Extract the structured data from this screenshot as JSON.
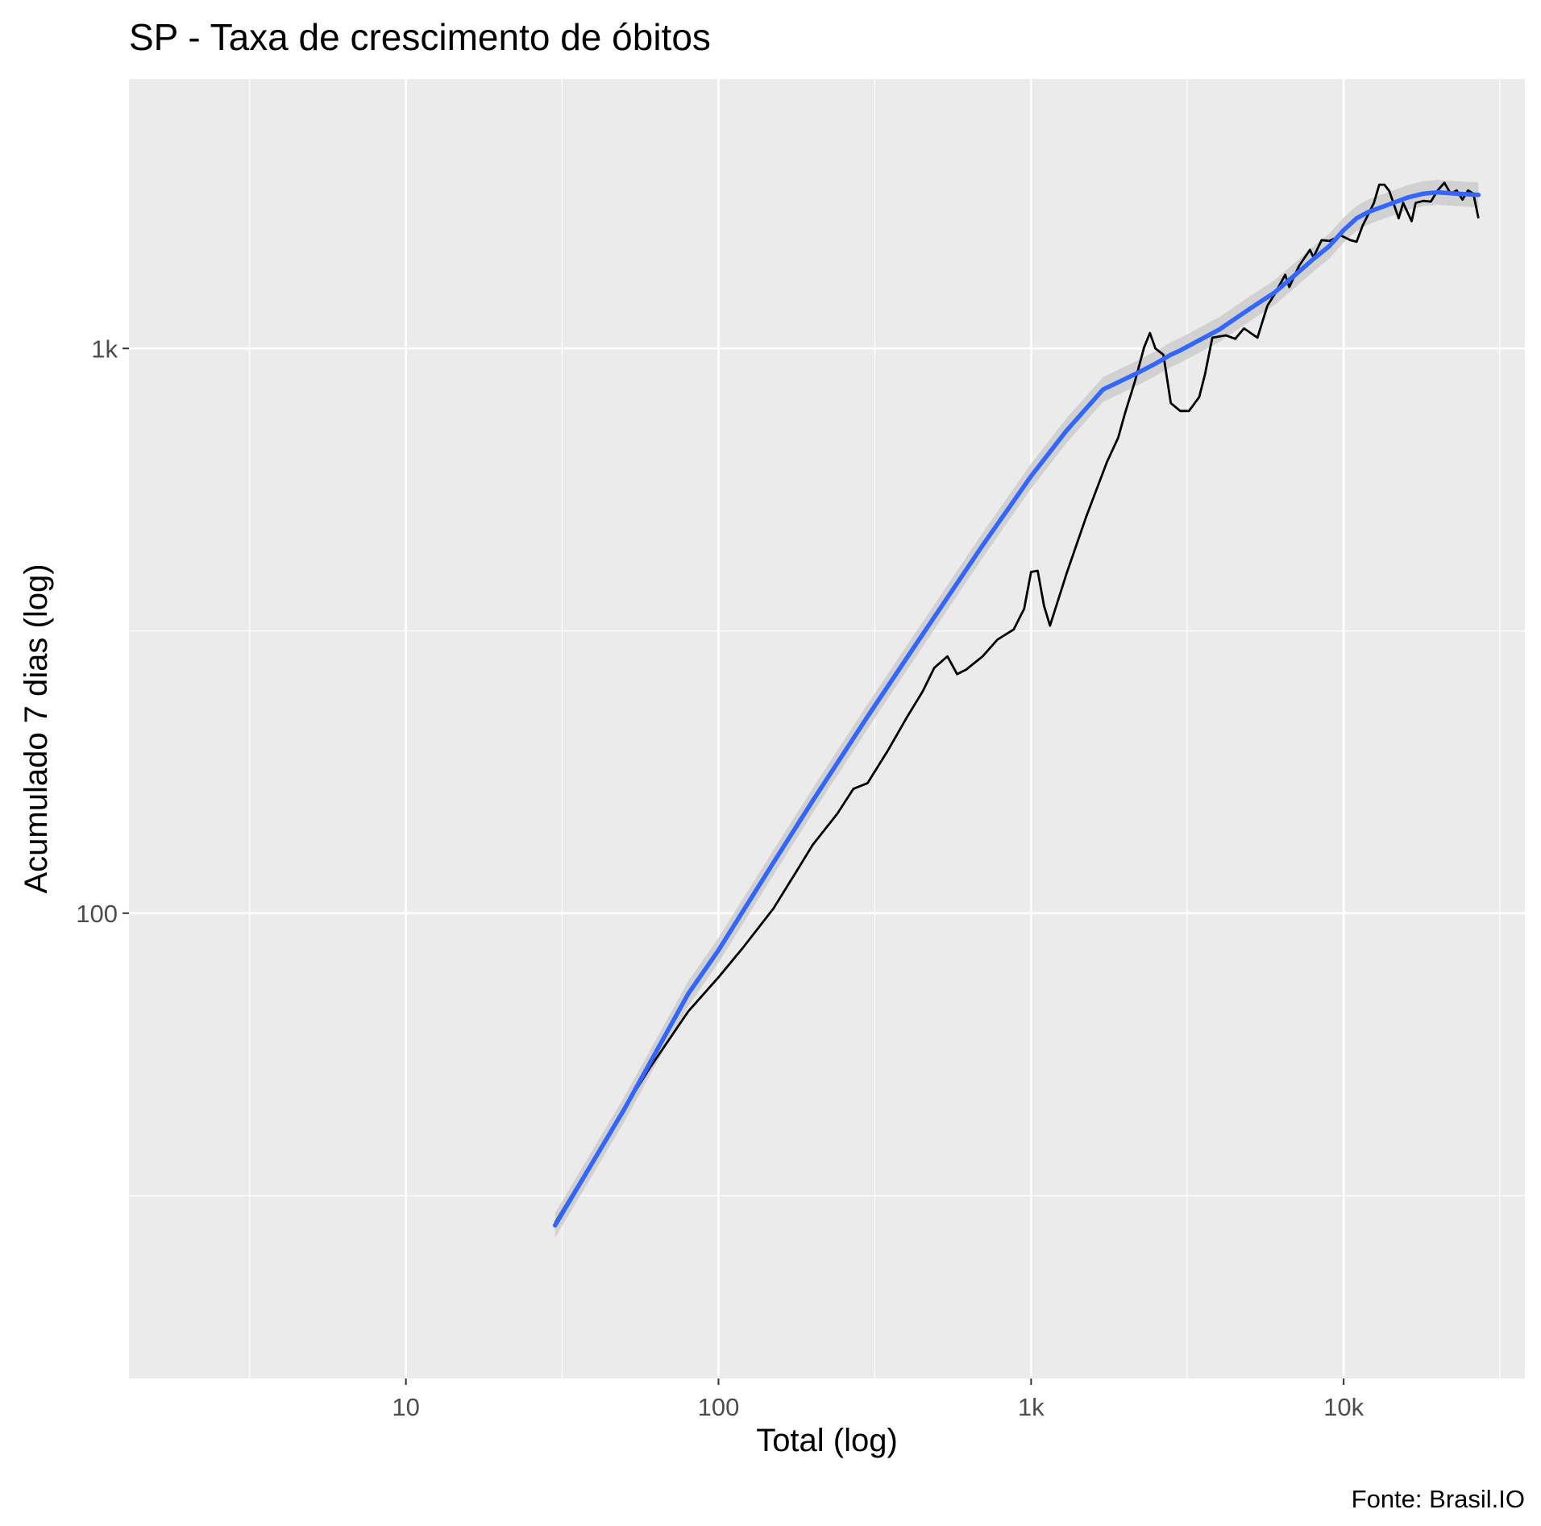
{
  "chart_data": {
    "type": "line",
    "title": "SP - Taxa de crescimento de óbitos",
    "xlabel": "Total (log)",
    "ylabel": "Acumulado 7 dias (log)",
    "caption": "Fonte: Brasil.IO",
    "x_scale": "log10",
    "y_scale": "log10",
    "xlim": [
      1.3,
      38000
    ],
    "ylim": [
      15,
      3000
    ],
    "x_ticks": [
      {
        "value": 10,
        "label": "10"
      },
      {
        "value": 100,
        "label": "100"
      },
      {
        "value": 1000,
        "label": "1k"
      },
      {
        "value": 10000,
        "label": "10k"
      }
    ],
    "y_ticks": [
      {
        "value": 100,
        "label": "100"
      },
      {
        "value": 1000,
        "label": "1k"
      }
    ],
    "x_minor_grid": [
      3.16,
      31.6,
      316,
      3160,
      31600
    ],
    "y_minor_grid": [
      31.6,
      316
    ],
    "grid": true,
    "colors": {
      "panel_background": "#ebebeb",
      "grid": "#ffffff",
      "observed_line": "#000000",
      "smooth_line": "#3366ff",
      "confidence_band": "#cccccc"
    },
    "series": [
      {
        "kind": "observed",
        "points": [
          [
            30,
            28.3
          ],
          [
            45,
            41
          ],
          [
            60,
            53
          ],
          [
            80,
            67
          ],
          [
            100,
            77
          ],
          [
            120,
            87
          ],
          [
            150,
            102
          ],
          [
            180,
            120
          ],
          [
            200,
            132
          ],
          [
            240,
            150
          ],
          [
            270,
            166
          ],
          [
            300,
            170
          ],
          [
            350,
            195
          ],
          [
            400,
            222
          ],
          [
            450,
            247
          ],
          [
            490,
            272
          ],
          [
            540,
            285
          ],
          [
            580,
            265
          ],
          [
            620,
            270
          ],
          [
            700,
            285
          ],
          [
            780,
            305
          ],
          [
            880,
            318
          ],
          [
            950,
            346
          ],
          [
            1000,
            402
          ],
          [
            1050,
            404
          ],
          [
            1100,
            350
          ],
          [
            1150,
            323
          ],
          [
            1300,
            400
          ],
          [
            1500,
            503
          ],
          [
            1750,
            630
          ],
          [
            1900,
            695
          ],
          [
            2000,
            770
          ],
          [
            2150,
            875
          ],
          [
            2300,
            1005
          ],
          [
            2400,
            1065
          ],
          [
            2500,
            1000
          ],
          [
            2650,
            975
          ],
          [
            2800,
            800
          ],
          [
            3000,
            775
          ],
          [
            3200,
            775
          ],
          [
            3450,
            820
          ],
          [
            3600,
            900
          ],
          [
            3800,
            1045
          ],
          [
            4200,
            1055
          ],
          [
            4500,
            1040
          ],
          [
            4800,
            1085
          ],
          [
            5300,
            1045
          ],
          [
            5700,
            1190
          ],
          [
            6000,
            1245
          ],
          [
            6500,
            1350
          ],
          [
            6700,
            1285
          ],
          [
            7200,
            1400
          ],
          [
            7800,
            1495
          ],
          [
            8000,
            1450
          ],
          [
            8500,
            1555
          ],
          [
            9000,
            1550
          ],
          [
            9800,
            1585
          ],
          [
            10500,
            1555
          ],
          [
            11000,
            1545
          ],
          [
            11500,
            1650
          ],
          [
            12500,
            1810
          ],
          [
            13000,
            1950
          ],
          [
            13500,
            1950
          ],
          [
            14000,
            1900
          ],
          [
            15000,
            1700
          ],
          [
            15500,
            1810
          ],
          [
            16500,
            1680
          ],
          [
            17000,
            1810
          ],
          [
            18000,
            1825
          ],
          [
            19000,
            1820
          ],
          [
            20000,
            1905
          ],
          [
            21000,
            1965
          ],
          [
            22000,
            1880
          ],
          [
            23000,
            1905
          ],
          [
            24000,
            1835
          ],
          [
            25000,
            1905
          ],
          [
            26000,
            1880
          ],
          [
            27000,
            1700
          ]
        ]
      },
      {
        "kind": "smooth",
        "band_halfwidth": 0.022,
        "points": [
          [
            30,
            28
          ],
          [
            50,
            45
          ],
          [
            80,
            72
          ],
          [
            100,
            86
          ],
          [
            150,
            123
          ],
          [
            200,
            158
          ],
          [
            300,
            223
          ],
          [
            400,
            283
          ],
          [
            500,
            340
          ],
          [
            700,
            448
          ],
          [
            1000,
            594
          ],
          [
            1300,
            716
          ],
          [
            1700,
            846
          ],
          [
            2200,
            906
          ],
          [
            2500,
            940
          ],
          [
            2800,
            975
          ],
          [
            3000,
            992
          ],
          [
            4000,
            1080
          ],
          [
            5000,
            1175
          ],
          [
            6000,
            1255
          ],
          [
            7000,
            1350
          ],
          [
            8000,
            1440
          ],
          [
            9000,
            1518
          ],
          [
            10000,
            1620
          ],
          [
            11000,
            1700
          ],
          [
            12000,
            1745
          ],
          [
            14000,
            1800
          ],
          [
            16000,
            1850
          ],
          [
            18000,
            1880
          ],
          [
            20000,
            1890
          ],
          [
            23000,
            1880
          ],
          [
            27000,
            1870
          ]
        ]
      }
    ]
  }
}
